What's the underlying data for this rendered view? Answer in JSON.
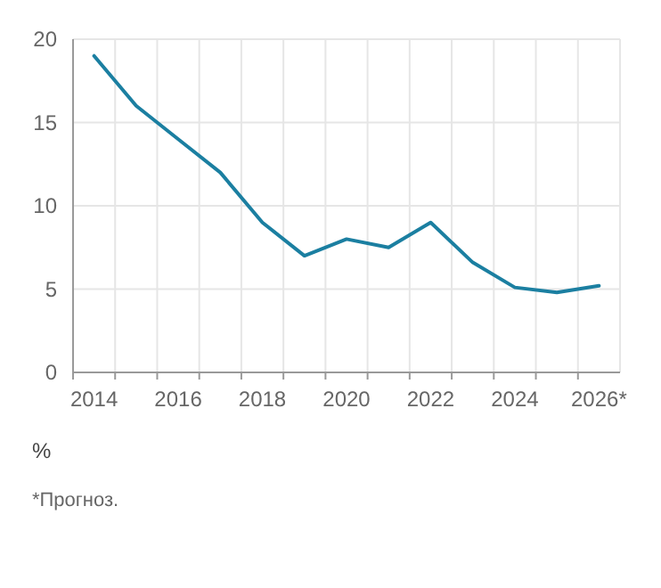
{
  "chart_data": {
    "type": "line",
    "categories": [
      "2014",
      null,
      "2016",
      null,
      "2018",
      null,
      "2020",
      null,
      "2022",
      null,
      "2024",
      null,
      "2026*"
    ],
    "series": [
      {
        "color": "#1b7fa1",
        "values": [
          19,
          16,
          14,
          12,
          9,
          7,
          8,
          7.5,
          9,
          6.6,
          5.1,
          4.8,
          5.2
        ]
      }
    ],
    "ylim": [
      0,
      20
    ],
    "yticks": [
      0,
      5,
      10,
      15,
      20
    ],
    "ylabel": "%",
    "grid": true,
    "marker": "none",
    "line_style": "solid",
    "annotations": [
      "*Прогноз."
    ]
  }
}
